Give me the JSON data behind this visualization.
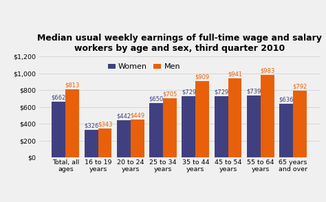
{
  "title": "Median usual weekly earnings of full-time wage and salary\nworkers by age and sex, third quarter 2010",
  "categories": [
    "Total, all\nages",
    "16 to 19\nyears",
    "20 to 24\nyears",
    "25 to 34\nyears",
    "35 to 44\nyears",
    "45 to 54\nyears",
    "55 to 64\nyears",
    "65 years\nand over"
  ],
  "women_values": [
    662,
    326,
    442,
    650,
    729,
    729,
    739,
    636
  ],
  "men_values": [
    813,
    343,
    449,
    705,
    909,
    941,
    983,
    792
  ],
  "women_color": "#404080",
  "men_color": "#e8600a",
  "legend_labels": [
    "Women",
    "Men"
  ],
  "ylim": [
    0,
    1200
  ],
  "yticks": [
    0,
    200,
    400,
    600,
    800,
    1000,
    1200
  ],
  "bar_width": 0.42,
  "title_fontsize": 9,
  "tick_fontsize": 6.8,
  "label_fontsize": 6.0,
  "legend_fontsize": 8,
  "background_color": "#f0f0f0"
}
